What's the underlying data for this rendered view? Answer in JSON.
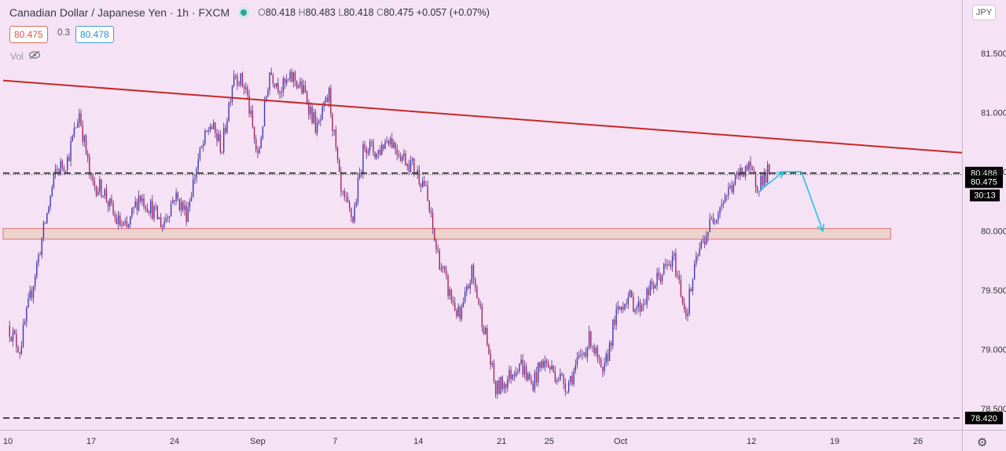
{
  "header": {
    "symbol": "Canadian Dollar / Japanese Yen · 1h · FXCM",
    "open_label": "O",
    "open": "80.418",
    "high_label": "H",
    "high": "80.483",
    "low_label": "L",
    "low": "80.418",
    "close_label": "C",
    "close": "80.475",
    "change": "+0.057 (+0.07%)"
  },
  "prices": {
    "bid": "80.475",
    "spread": "0.3",
    "ask": "80.478"
  },
  "volume_label": "Vol",
  "currency": "JPY",
  "colors": {
    "background": "#f5e2f5",
    "trendline": "#c62828",
    "candles": "#5b2c83",
    "projection": "#22c4e0",
    "zone_fill": "#ecd3cd",
    "zone_border": "#e07070"
  },
  "chart_data": {
    "type": "candlestick",
    "instrument": "CAD/JPY",
    "timeframe": "1h",
    "ylim": [
      78.32,
      81.95
    ],
    "y_ticks": [
      78.5,
      79.0,
      79.5,
      80.0,
      80.5,
      81.0,
      81.5
    ],
    "y_tick_labels": [
      "78.500",
      "79.000",
      "79.500",
      "80.000",
      "80.500",
      "81.000",
      "81.500"
    ],
    "x_ticks": [
      {
        "label": "10",
        "x": 0
      },
      {
        "label": "17",
        "x": 7
      },
      {
        "label": "24",
        "x": 14
      },
      {
        "label": "Sep",
        "x": 21
      },
      {
        "label": "7",
        "x": 27.5
      },
      {
        "label": "14",
        "x": 34.5
      },
      {
        "label": "21",
        "x": 41.5
      },
      {
        "label": "25",
        "x": 45.5
      },
      {
        "label": "Oct",
        "x": 51.5
      },
      {
        "label": "12",
        "x": 62.5
      },
      {
        "label": "19",
        "x": 69.5
      },
      {
        "label": "26",
        "x": 76.5
      }
    ],
    "xlim": [
      -0.4,
      80.2
    ],
    "price_path": [
      [
        0,
        79.2
      ],
      [
        1,
        79.0
      ],
      [
        2,
        79.5
      ],
      [
        3,
        80.0
      ],
      [
        4,
        80.5
      ],
      [
        5,
        80.6
      ],
      [
        6,
        81.0
      ],
      [
        7,
        80.4
      ],
      [
        8,
        80.35
      ],
      [
        9,
        80.1
      ],
      [
        10,
        80.0
      ],
      [
        11,
        80.3
      ],
      [
        12,
        80.2
      ],
      [
        13,
        80.05
      ],
      [
        14,
        80.3
      ],
      [
        15,
        80.15
      ],
      [
        16,
        80.6
      ],
      [
        17,
        80.9
      ],
      [
        18,
        80.7
      ],
      [
        19,
        81.35
      ],
      [
        20,
        81.2
      ],
      [
        21,
        80.6
      ],
      [
        22,
        81.35
      ],
      [
        23,
        81.2
      ],
      [
        24,
        81.3
      ],
      [
        25,
        81.15
      ],
      [
        26,
        80.85
      ],
      [
        27,
        81.15
      ],
      [
        28,
        80.3
      ],
      [
        29,
        80.1
      ],
      [
        30,
        80.75
      ],
      [
        31,
        80.65
      ],
      [
        32,
        80.8
      ],
      [
        33,
        80.65
      ],
      [
        34,
        80.55
      ],
      [
        35,
        80.4
      ],
      [
        36,
        79.85
      ],
      [
        37,
        79.5
      ],
      [
        38,
        79.25
      ],
      [
        39,
        79.65
      ],
      [
        40,
        79.2
      ],
      [
        41,
        78.65
      ],
      [
        42,
        78.75
      ],
      [
        43,
        78.9
      ],
      [
        44,
        78.7
      ],
      [
        45,
        78.9
      ],
      [
        46,
        78.8
      ],
      [
        47,
        78.7
      ],
      [
        48,
        78.9
      ],
      [
        49,
        79.1
      ],
      [
        50,
        78.75
      ],
      [
        51,
        79.25
      ],
      [
        52,
        79.45
      ],
      [
        53,
        79.35
      ],
      [
        54,
        79.5
      ],
      [
        55,
        79.65
      ],
      [
        56,
        79.75
      ],
      [
        57,
        79.3
      ],
      [
        58,
        79.8
      ],
      [
        59,
        80.05
      ],
      [
        60,
        80.25
      ],
      [
        61,
        80.4
      ],
      [
        62,
        80.55
      ],
      [
        63,
        80.4
      ],
      [
        64,
        80.5
      ]
    ],
    "horizontal_lines": [
      {
        "price": 80.488,
        "style": "dashed",
        "color": "#222222",
        "label": "80.488"
      },
      {
        "price": 78.42,
        "style": "dashed",
        "color": "#222222",
        "label": "78.420"
      }
    ],
    "current_price": {
      "price": 80.475,
      "label": "80.475",
      "countdown": "30:13"
    },
    "trendline": {
      "from": [
        -0.4,
        81.27
      ],
      "to": [
        80.2,
        80.66
      ],
      "color": "#c62828"
    },
    "support_zone": {
      "from_x": -0.4,
      "to_x": 74.2,
      "price_low": 79.93,
      "price_high": 80.02
    },
    "projection_path": [
      [
        63.2,
        80.34
      ],
      [
        65.2,
        80.5
      ],
      [
        66.7,
        80.5
      ],
      [
        68.5,
        80.0
      ]
    ]
  }
}
